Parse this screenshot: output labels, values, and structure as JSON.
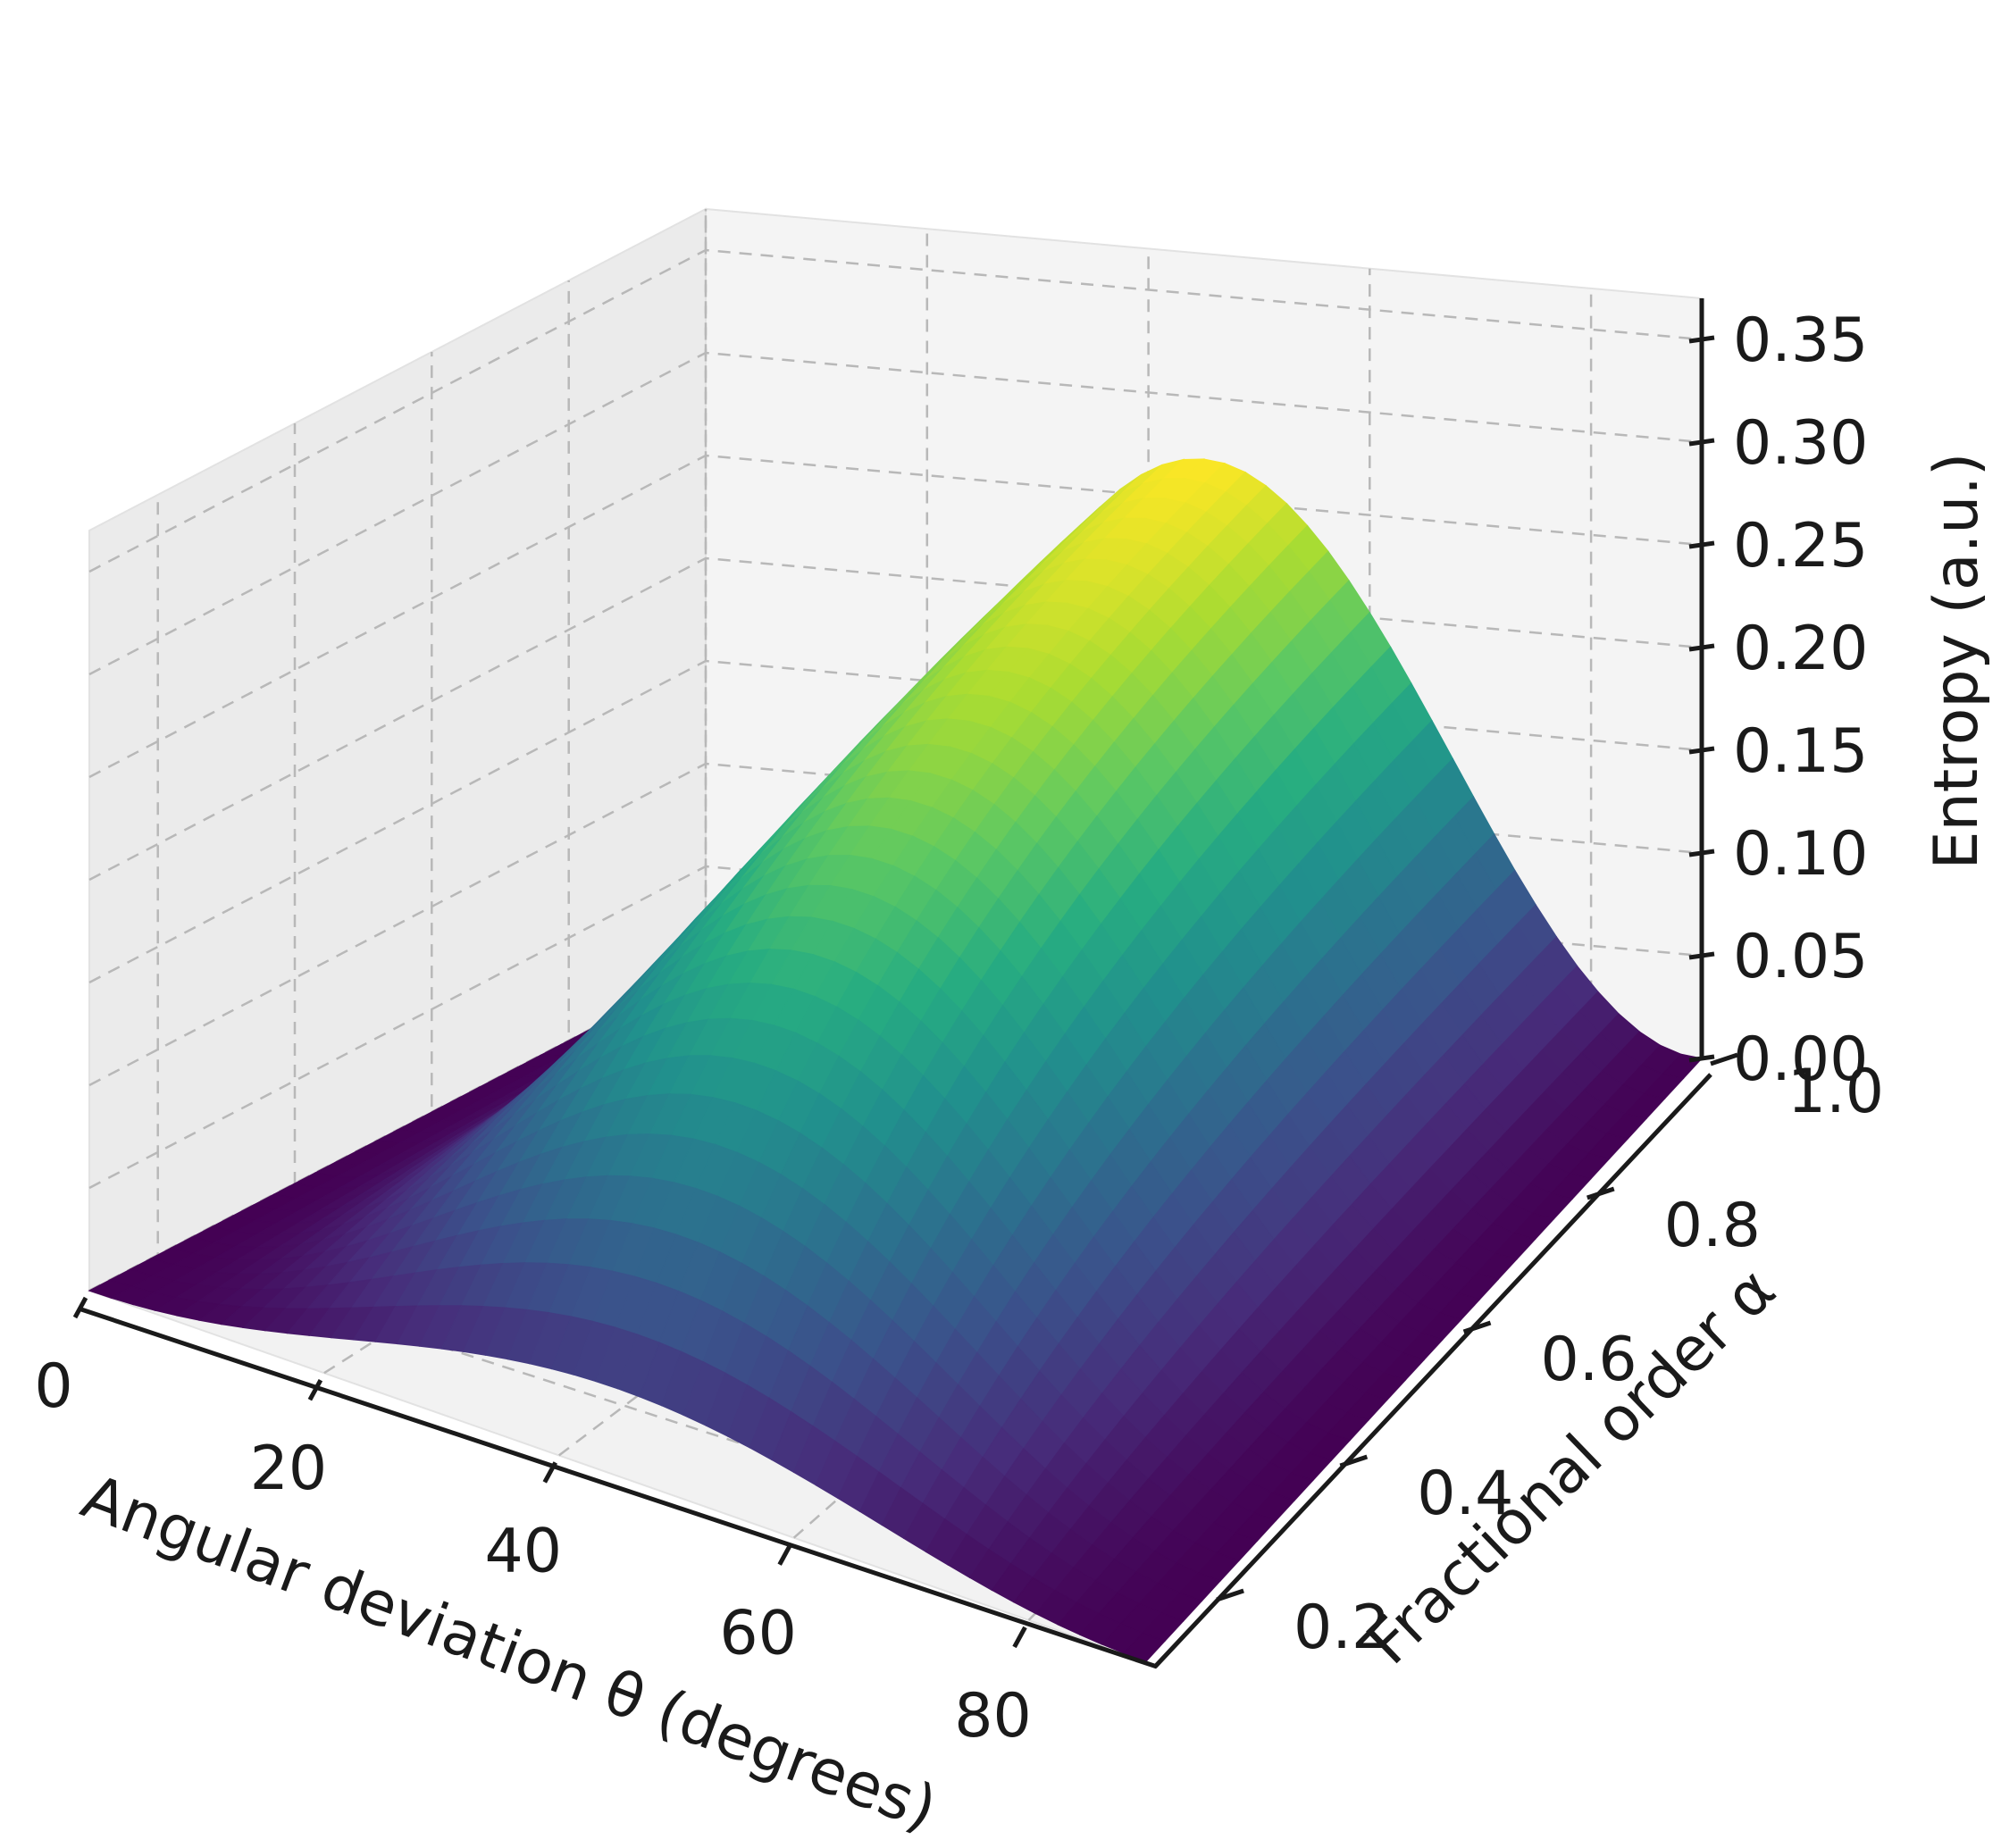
{
  "chart_data": {
    "type": "surface",
    "title": "",
    "xlabel": "Angular deviation θ (degrees)",
    "ylabel": "Fractional order α",
    "zlabel": "Entropy (a.u.)",
    "x_ticks": [
      "0",
      "20",
      "40",
      "60",
      "80"
    ],
    "x_tick_values": [
      0,
      20,
      40,
      60,
      80
    ],
    "y_ticks": [
      "0.2",
      "0.4",
      "0.6",
      "0.8",
      "1.0"
    ],
    "y_tick_values": [
      0.2,
      0.4,
      0.6,
      0.8,
      1.0
    ],
    "z_ticks": [
      "0.00",
      "0.05",
      "0.10",
      "0.15",
      "0.20",
      "0.25",
      "0.30",
      "0.35"
    ],
    "z_tick_values": [
      0.0,
      0.05,
      0.1,
      0.15,
      0.2,
      0.25,
      0.3,
      0.35
    ],
    "xlim": [
      0,
      90
    ],
    "ylim": [
      0.1,
      1.0
    ],
    "zlim": [
      0,
      0.37
    ],
    "grid": true,
    "colormap": "viridis",
    "colormap_colors": [
      "#440154",
      "#472c7a",
      "#3b518b",
      "#2c718e",
      "#21908d",
      "#27ad81",
      "#5cc863",
      "#aadc32",
      "#fde725"
    ],
    "series": [
      {
        "x_degrees": [
          0,
          10,
          20,
          30,
          40,
          50,
          60,
          70,
          80,
          90
        ],
        "alpha": [
          0.1,
          0.2,
          0.3,
          0.4,
          0.5,
          0.6,
          0.7,
          0.8,
          0.9,
          1.0
        ],
        "z_at_alpha_1": [
          0.0,
          0.03,
          0.11,
          0.21,
          0.27,
          0.27,
          0.21,
          0.11,
          0.03,
          0.0
        ],
        "z_at_theta_45": [
          0.03,
          0.11,
          0.16,
          0.2,
          0.22,
          0.24,
          0.25,
          0.26,
          0.27,
          0.27
        ]
      }
    ]
  }
}
